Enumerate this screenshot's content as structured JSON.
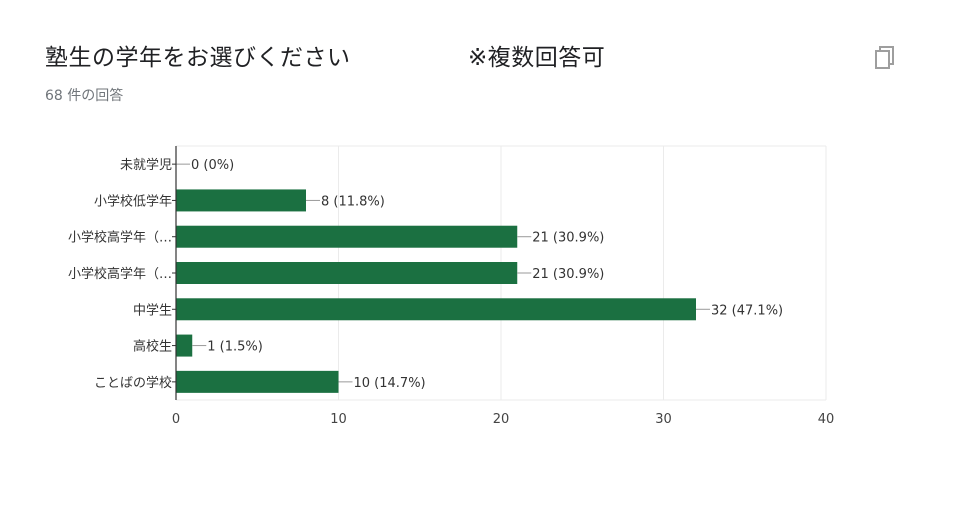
{
  "header": {
    "title": "塾生の学年をお選びください　　　　　※複数回答可",
    "response_count": "68 件の回答"
  },
  "colors": {
    "bar": "#1b7041",
    "grid": "#ebebeb",
    "axis": "#333333",
    "text": "#333333"
  },
  "icons": {
    "copy": "copy-icon"
  },
  "chart_data": {
    "type": "bar",
    "orientation": "horizontal",
    "categories": [
      "未就学児",
      "小学校低学年",
      "小学校高学年（…",
      "小学校高学年（…",
      "中学生",
      "高校生",
      "ことばの学校"
    ],
    "values": [
      0,
      8,
      21,
      21,
      32,
      1,
      10
    ],
    "value_labels": [
      "0 (0%)",
      "8 (11.8%)",
      "21 (30.9%)",
      "21 (30.9%)",
      "32 (47.1%)",
      "1 (1.5%)",
      "10 (14.7%)"
    ],
    "xlim": [
      0,
      40
    ],
    "xticks": [
      "0",
      "10",
      "20",
      "30",
      "40"
    ],
    "grid": true
  }
}
